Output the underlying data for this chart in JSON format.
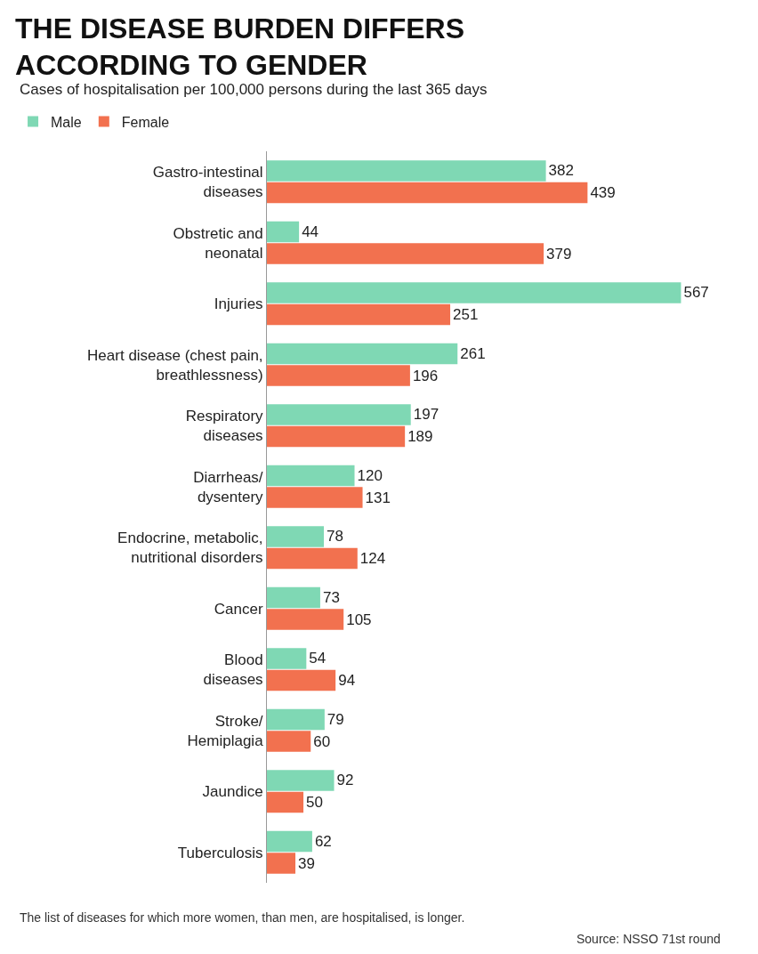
{
  "chart_data": {
    "type": "bar",
    "orientation": "horizontal",
    "title": "THE DISEASE BURDEN DIFFERS\nACCORDING TO GENDER",
    "subtitle": "Cases of hospitalisation per 100,000 persons during the last 365 days",
    "categories": [
      "Gastro-intestinal\ndiseases",
      "Obstretic and\nneonatal",
      "Injuries",
      "Heart disease (chest pain,\nbreathlessness)",
      "Respiratory\ndiseases",
      "Diarrheas/\ndysentery",
      "Endocrine, metabolic,\nnutritional disorders",
      "Cancer",
      "Blood\ndiseases",
      "Stroke/\nHemiplagia",
      "Jaundice",
      "Tuberculosis"
    ],
    "series": [
      {
        "name": "Male",
        "color": "#7fd8b4",
        "values": [
          382,
          44,
          567,
          261,
          197,
          120,
          78,
          73,
          54,
          79,
          92,
          62
        ]
      },
      {
        "name": "Female",
        "color": "#f2714f",
        "values": [
          439,
          379,
          251,
          196,
          189,
          131,
          124,
          105,
          94,
          60,
          50,
          39
        ]
      }
    ],
    "data_labels": true,
    "legend": "top left",
    "tick_labels": "y",
    "annotations": [
      "The list of diseases for which more women, than men, are hospitalised, is longer.",
      "Source: NSSO 71st round"
    ]
  }
}
